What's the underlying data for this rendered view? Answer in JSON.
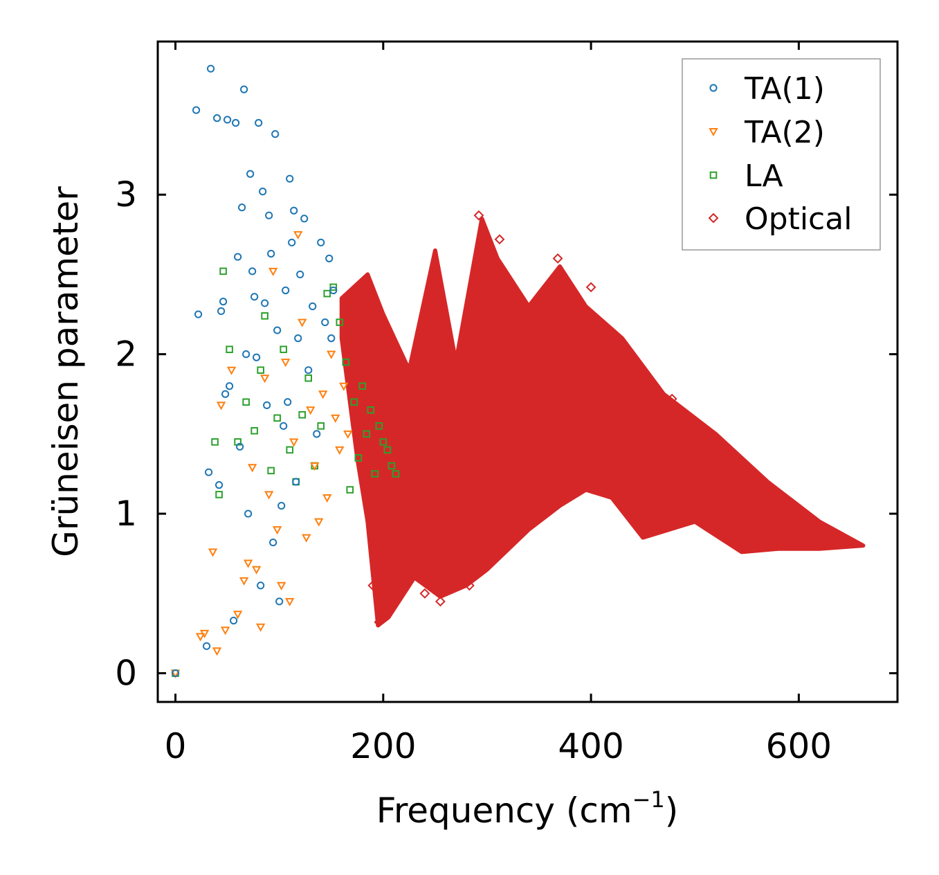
{
  "chart_data": {
    "type": "scatter",
    "title": "",
    "xlabel": "Frequency (cm",
    "xlabel_sup": "−1",
    "xlabel_close": ")",
    "ylabel": "Grüneisen parameter",
    "xlim": [
      -17,
      695
    ],
    "ylim": [
      -0.18,
      3.96
    ],
    "xticks": [
      0,
      200,
      400,
      600
    ],
    "yticks": [
      0,
      1,
      2,
      3
    ],
    "xtick_labels": [
      "0",
      "200",
      "400",
      "600"
    ],
    "ytick_labels": [
      "0",
      "1",
      "2",
      "3"
    ],
    "grid": false,
    "legend_position": "top-right",
    "series": [
      {
        "name": "TA(1)",
        "marker": "circle",
        "color": "#1f77b4",
        "x": [
          0,
          20,
          22,
          30,
          32,
          34,
          40,
          42,
          44,
          46,
          48,
          50,
          52,
          56,
          58,
          60,
          62,
          64,
          66,
          68,
          70,
          72,
          74,
          76,
          78,
          80,
          82,
          84,
          86,
          88,
          90,
          92,
          94,
          96,
          98,
          100,
          102,
          104,
          106,
          108,
          110,
          112,
          114,
          116,
          118,
          120,
          124,
          128,
          132,
          136,
          140,
          144,
          148,
          150,
          152
        ],
        "y": [
          0.0,
          3.53,
          2.25,
          0.17,
          1.26,
          3.79,
          3.48,
          1.18,
          2.27,
          2.33,
          1.75,
          3.47,
          1.8,
          0.33,
          3.45,
          2.61,
          1.42,
          2.92,
          3.66,
          2.0,
          1.0,
          3.13,
          2.52,
          2.36,
          1.98,
          3.45,
          0.55,
          3.02,
          2.32,
          1.68,
          2.87,
          2.63,
          0.82,
          3.38,
          2.15,
          0.45,
          1.05,
          1.55,
          2.4,
          1.7,
          3.1,
          2.7,
          2.9,
          1.2,
          2.1,
          2.5,
          2.85,
          1.9,
          2.3,
          1.5,
          2.7,
          2.2,
          2.6,
          2.1,
          2.4
        ]
      },
      {
        "name": "TA(2)",
        "marker": "triangle-down",
        "color": "#ff7f0e",
        "x": [
          0,
          24,
          28,
          36,
          40,
          44,
          48,
          54,
          60,
          66,
          70,
          74,
          78,
          82,
          86,
          90,
          94,
          98,
          102,
          106,
          110,
          114,
          118,
          122,
          126,
          130,
          134,
          138,
          142,
          146,
          150,
          154,
          158,
          162,
          166
        ],
        "y": [
          0.0,
          0.23,
          0.25,
          0.76,
          0.14,
          1.68,
          0.27,
          1.9,
          0.37,
          0.58,
          0.69,
          1.29,
          0.65,
          0.29,
          1.85,
          1.12,
          2.52,
          0.9,
          0.55,
          1.95,
          0.45,
          1.45,
          2.75,
          2.2,
          0.85,
          1.65,
          1.3,
          0.95,
          1.75,
          1.1,
          2.0,
          1.6,
          1.4,
          1.8,
          1.5
        ]
      },
      {
        "name": "LA",
        "marker": "square",
        "color": "#2ca02c",
        "x": [
          0,
          38,
          42,
          46,
          52,
          60,
          68,
          76,
          82,
          86,
          92,
          98,
          104,
          110,
          116,
          122,
          128,
          134,
          140,
          146,
          152,
          158,
          164,
          168,
          172,
          176,
          180,
          184,
          188,
          192,
          196,
          200,
          204,
          208,
          212
        ],
        "y": [
          0.0,
          1.45,
          1.12,
          2.52,
          2.03,
          1.45,
          1.7,
          1.52,
          1.9,
          2.24,
          1.27,
          1.6,
          2.03,
          1.4,
          1.2,
          1.62,
          1.85,
          1.3,
          1.55,
          2.38,
          2.42,
          2.2,
          1.95,
          1.15,
          1.7,
          1.35,
          1.8,
          1.5,
          1.65,
          1.25,
          1.55,
          1.45,
          1.4,
          1.3,
          1.25
        ]
      },
      {
        "name": "Optical",
        "marker": "diamond",
        "color": "#d62728",
        "envelope_upper": [
          [
            160,
            2.35
          ],
          [
            185,
            2.5
          ],
          [
            200,
            2.25
          ],
          [
            225,
            1.9
          ],
          [
            250,
            2.65
          ],
          [
            270,
            1.95
          ],
          [
            295,
            2.85
          ],
          [
            310,
            2.6
          ],
          [
            340,
            2.3
          ],
          [
            370,
            2.55
          ],
          [
            395,
            2.3
          ],
          [
            430,
            2.1
          ],
          [
            470,
            1.75
          ],
          [
            520,
            1.5
          ],
          [
            570,
            1.2
          ],
          [
            620,
            0.95
          ],
          [
            662,
            0.8
          ]
        ],
        "envelope_lower": [
          [
            662,
            0.8
          ],
          [
            620,
            0.78
          ],
          [
            580,
            0.78
          ],
          [
            545,
            0.76
          ],
          [
            500,
            0.95
          ],
          [
            450,
            0.85
          ],
          [
            420,
            1.1
          ],
          [
            395,
            1.15
          ],
          [
            370,
            1.05
          ],
          [
            340,
            0.9
          ],
          [
            300,
            0.65
          ],
          [
            280,
            0.55
          ],
          [
            255,
            0.48
          ],
          [
            230,
            0.6
          ],
          [
            205,
            0.35
          ],
          [
            195,
            0.3
          ],
          [
            185,
            0.95
          ],
          [
            175,
            1.35
          ],
          [
            160,
            2.1
          ]
        ],
        "outliers_x": [
          196,
          200,
          190,
          240,
          255,
          258,
          283,
          292,
          312,
          368,
          400,
          440,
          478,
          505,
          548
        ],
        "outliers_y": [
          0.32,
          0.35,
          0.55,
          0.5,
          0.45,
          0.6,
          0.55,
          2.87,
          2.72,
          2.6,
          2.42,
          1.62,
          1.72,
          1.33,
          1.25
        ]
      }
    ]
  }
}
